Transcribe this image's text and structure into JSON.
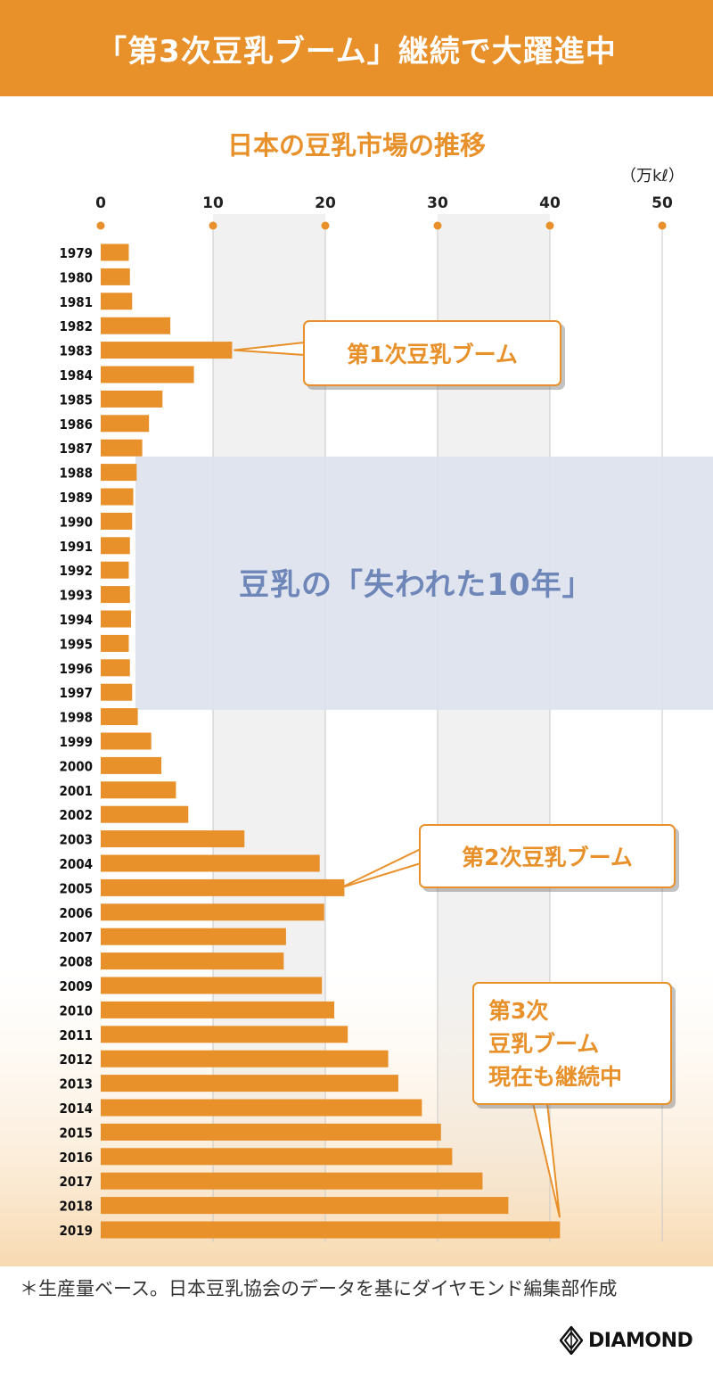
{
  "header": {
    "title": "「第3次豆乳ブーム」継続で大躍進中"
  },
  "chart_data": {
    "type": "bar",
    "orientation": "horizontal",
    "title": "日本の豆乳市場の推移",
    "unit_label": "（万kℓ）",
    "xlim": [
      0,
      50
    ],
    "xticks": [
      0,
      10,
      20,
      30,
      40,
      50
    ],
    "categories": [
      "1979",
      "1980",
      "1981",
      "1982",
      "1983",
      "1984",
      "1985",
      "1986",
      "1987",
      "1988",
      "1989",
      "1990",
      "1991",
      "1992",
      "1993",
      "1994",
      "1995",
      "1996",
      "1997",
      "1998",
      "1999",
      "2000",
      "2001",
      "2002",
      "2003",
      "2004",
      "2005",
      "2006",
      "2007",
      "2008",
      "2009",
      "2010",
      "2011",
      "2012",
      "2013",
      "2014",
      "2015",
      "2016",
      "2017",
      "2018",
      "2019"
    ],
    "values": [
      2.5,
      2.6,
      2.8,
      6.2,
      11.7,
      8.3,
      5.5,
      4.3,
      3.7,
      3.2,
      2.9,
      2.8,
      2.6,
      2.5,
      2.6,
      2.7,
      2.5,
      2.6,
      2.8,
      3.3,
      4.5,
      5.4,
      6.7,
      7.8,
      12.8,
      19.5,
      21.7,
      19.9,
      16.5,
      16.3,
      19.7,
      20.8,
      22.0,
      25.6,
      26.5,
      28.6,
      30.3,
      31.3,
      34.0,
      36.3,
      40.9
    ],
    "annotations": {
      "boom1": "第1次豆乳ブーム",
      "boom2": "第2次豆乳ブーム",
      "boom3_line1": "第3次",
      "boom3_line2": "豆乳ブーム",
      "boom3_line3": "現在も継続中",
      "lost_decade": "豆乳の「失われた10年」"
    },
    "colors": {
      "bar": "#e8902a",
      "lost_band": "#dde3ee",
      "grid_shade": "#f1f1f1"
    }
  },
  "footnote": "＊生産量ベース。日本豆乳協会のデータを基にダイヤモンド編集部作成",
  "logo": {
    "text": "DIAMOND"
  }
}
